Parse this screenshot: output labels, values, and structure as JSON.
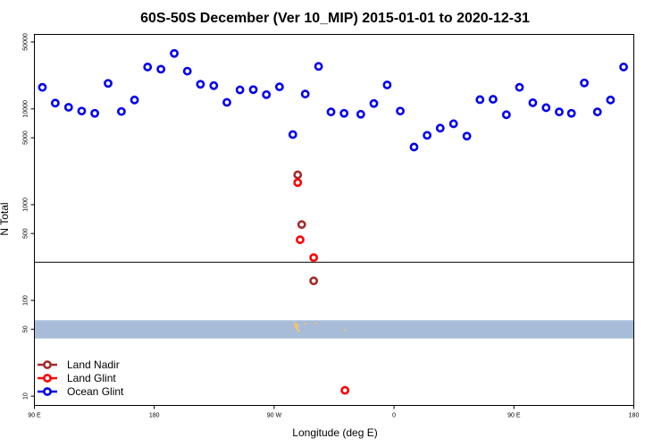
{
  "chart_data": {
    "type": "scatter",
    "title": "60S-50S December (Ver 10_MIP)   2015-01-01 to 2020-12-31",
    "xlabel": "Longitude (deg E)",
    "ylabel": "N Total",
    "xlim": [
      -90,
      180
    ],
    "ylim_log": [
      8,
      60000
    ],
    "y_scale": "log",
    "x_ticks": [
      {
        "value": -90,
        "label": "90 E"
      },
      {
        "value": -36,
        "label": "180"
      },
      {
        "value": 18,
        "label": "90 W"
      },
      {
        "value": 72,
        "label": "0"
      },
      {
        "value": 126,
        "label": "90 E"
      },
      {
        "value": 180,
        "label": "180"
      }
    ],
    "y_ticks": [
      {
        "value": 10,
        "label": "10"
      },
      {
        "value": 50,
        "label": "50"
      },
      {
        "value": 100,
        "label": "100"
      },
      {
        "value": 500,
        "label": "500"
      },
      {
        "value": 1000,
        "label": "1000"
      },
      {
        "value": 5000,
        "label": "5000"
      },
      {
        "value": 10000,
        "label": "10000"
      },
      {
        "value": 50000,
        "label": "50000"
      }
    ],
    "reference_line": {
      "y": 250
    },
    "map_band": {
      "y_low": 40,
      "y_high": 62,
      "color": "#a7bcd9"
    },
    "series": [
      {
        "name": "Land Nadir",
        "color": "#a52a2a",
        "points": [
          {
            "x": 28.6,
            "y": 2050
          },
          {
            "x": 30.4,
            "y": 620
          },
          {
            "x": 35.8,
            "y": 160
          }
        ]
      },
      {
        "name": "Land Glint",
        "color": "#ff0000",
        "points": [
          {
            "x": 28.6,
            "y": 1700
          },
          {
            "x": 29.7,
            "y": 430
          },
          {
            "x": 35.8,
            "y": 280
          },
          {
            "x": 49.9,
            "y": 11.5
          }
        ]
      },
      {
        "name": "Ocean Glint",
        "color": "#0000ee",
        "points": [
          {
            "x": -86.4,
            "y": 16800
          },
          {
            "x": -80.6,
            "y": 11500
          },
          {
            "x": -74.6,
            "y": 10400
          },
          {
            "x": -68.7,
            "y": 9500
          },
          {
            "x": -62.8,
            "y": 9000
          },
          {
            "x": -56.8,
            "y": 18500
          },
          {
            "x": -50.8,
            "y": 9400
          },
          {
            "x": -44.9,
            "y": 12400
          },
          {
            "x": -39.0,
            "y": 27400
          },
          {
            "x": -33.0,
            "y": 26000
          },
          {
            "x": -27.0,
            "y": 38000
          },
          {
            "x": -21.1,
            "y": 24800
          },
          {
            "x": -15.2,
            "y": 18100
          },
          {
            "x": -9.2,
            "y": 17500
          },
          {
            "x": -3.3,
            "y": 11700
          },
          {
            "x": 2.6,
            "y": 15800
          },
          {
            "x": 8.6,
            "y": 15900
          },
          {
            "x": 14.5,
            "y": 14100
          },
          {
            "x": 20.4,
            "y": 17000
          },
          {
            "x": 26.4,
            "y": 5400
          },
          {
            "x": 32.0,
            "y": 14300
          },
          {
            "x": 38.0,
            "y": 27800
          },
          {
            "x": 43.6,
            "y": 9300
          },
          {
            "x": 49.5,
            "y": 9000
          },
          {
            "x": 57.0,
            "y": 8800
          },
          {
            "x": 62.9,
            "y": 11400
          },
          {
            "x": 68.9,
            "y": 17800
          },
          {
            "x": 74.8,
            "y": 9500
          },
          {
            "x": 81.0,
            "y": 4000
          },
          {
            "x": 86.9,
            "y": 5300
          },
          {
            "x": 92.8,
            "y": 6300
          },
          {
            "x": 98.8,
            "y": 7000
          },
          {
            "x": 104.8,
            "y": 5200
          },
          {
            "x": 110.7,
            "y": 12500
          },
          {
            "x": 116.6,
            "y": 12600
          },
          {
            "x": 122.6,
            "y": 8700
          },
          {
            "x": 128.5,
            "y": 16800
          },
          {
            "x": 134.5,
            "y": 11600
          },
          {
            "x": 140.5,
            "y": 10300
          },
          {
            "x": 146.4,
            "y": 9300
          },
          {
            "x": 151.9,
            "y": 9000
          },
          {
            "x": 157.7,
            "y": 18700
          },
          {
            "x": 163.6,
            "y": 9300
          },
          {
            "x": 169.5,
            "y": 12400
          },
          {
            "x": 175.4,
            "y": 27400
          }
        ]
      }
    ],
    "legend": {
      "position": "bottom-left",
      "entries": [
        "Land Nadir",
        "Land Glint",
        "Ocean Glint"
      ]
    }
  }
}
